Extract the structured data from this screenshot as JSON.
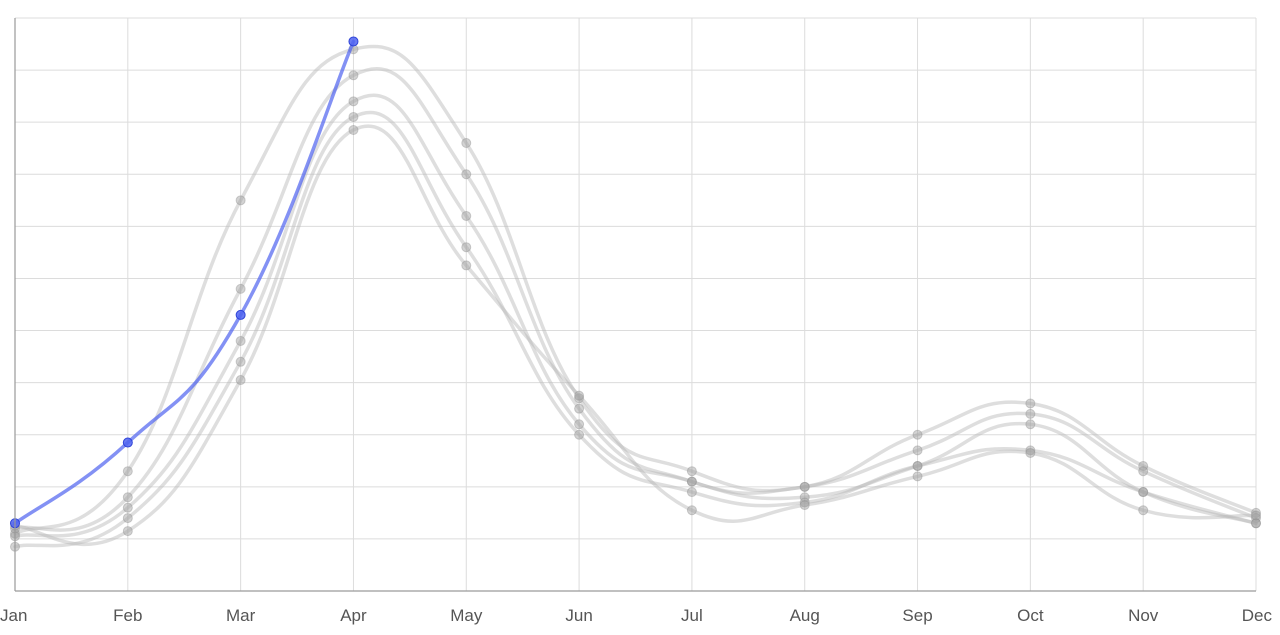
{
  "chart_data": {
    "type": "line",
    "categories": [
      "Jan",
      "Feb",
      "Mar",
      "Apr",
      "May",
      "Jun",
      "Jul",
      "Aug",
      "Sep",
      "Oct",
      "Nov",
      "Dec"
    ],
    "ylim": [
      0,
      11
    ],
    "grid": true,
    "colors": {
      "highlight": "#4f63f0",
      "muted": "#b5b5b5",
      "grid": "#dcdcdc",
      "axis": "#9a9a9a",
      "tick_text": "#555555"
    },
    "highlight_series": {
      "values": [
        1.3,
        2.85,
        5.3,
        10.55
      ]
    },
    "series": [
      {
        "values": [
          1.1,
          2.3,
          7.5,
          10.4,
          8.6,
          3.7,
          2.3,
          2.0,
          3.0,
          3.6,
          2.4,
          1.5
        ]
      },
      {
        "values": [
          1.2,
          1.8,
          5.8,
          9.9,
          8.0,
          3.5,
          2.1,
          2.0,
          2.7,
          3.4,
          2.3,
          1.4
        ]
      },
      {
        "values": [
          1.05,
          1.6,
          4.8,
          9.4,
          7.2,
          3.2,
          2.1,
          1.8,
          2.4,
          3.2,
          1.9,
          1.3
        ]
      },
      {
        "values": [
          0.85,
          1.4,
          4.4,
          9.1,
          6.6,
          3.0,
          1.9,
          1.7,
          2.4,
          2.7,
          1.9,
          1.3
        ]
      },
      {
        "values": [
          1.25,
          1.15,
          4.05,
          8.85,
          6.25,
          3.75,
          1.55,
          1.65,
          2.2,
          2.65,
          1.55,
          1.45
        ]
      }
    ]
  }
}
